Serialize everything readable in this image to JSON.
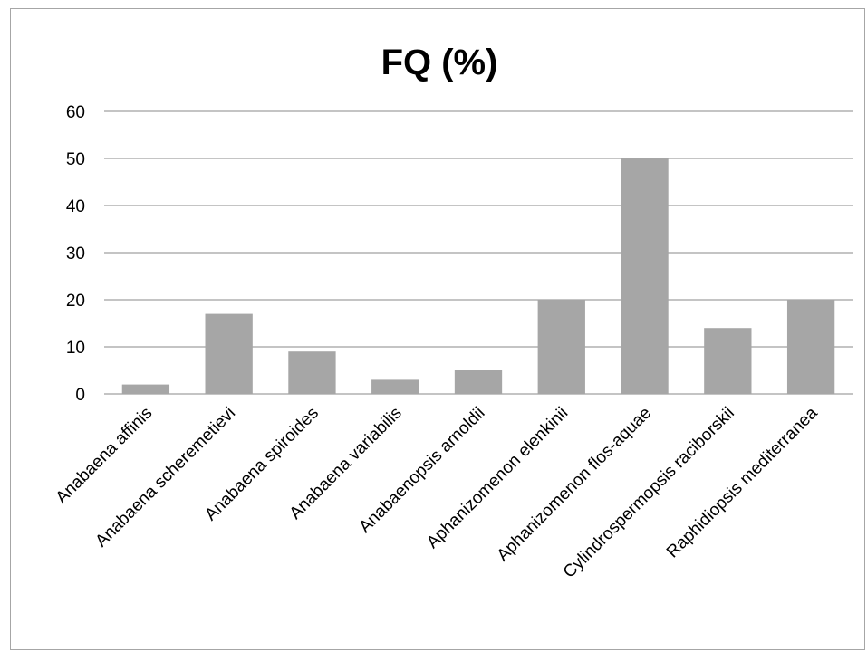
{
  "chart_data": {
    "type": "bar",
    "title": "FQ (%)",
    "xlabel": "",
    "ylabel": "",
    "categories": [
      "Anabaena affinis",
      "Anabaena scheremetievi",
      "Anabaena spiroides",
      "Anabaena variabilis",
      "Anabaenopsis arnoldii",
      "Aphanizomenon elenkinii",
      "Aphanizomenon flos-aquae",
      "Cylindrospermopsis raciborskii",
      "Raphidiopsis mediterranea"
    ],
    "values": [
      2,
      17,
      9,
      3,
      5,
      20,
      50,
      14,
      20
    ],
    "ylim": [
      0,
      60
    ],
    "yticks": [
      "0",
      "10",
      "20",
      "30",
      "40",
      "50",
      "60"
    ],
    "grid": true,
    "legend": "none",
    "bar_color": "#a6a6a6",
    "grid_color": "#888888"
  }
}
